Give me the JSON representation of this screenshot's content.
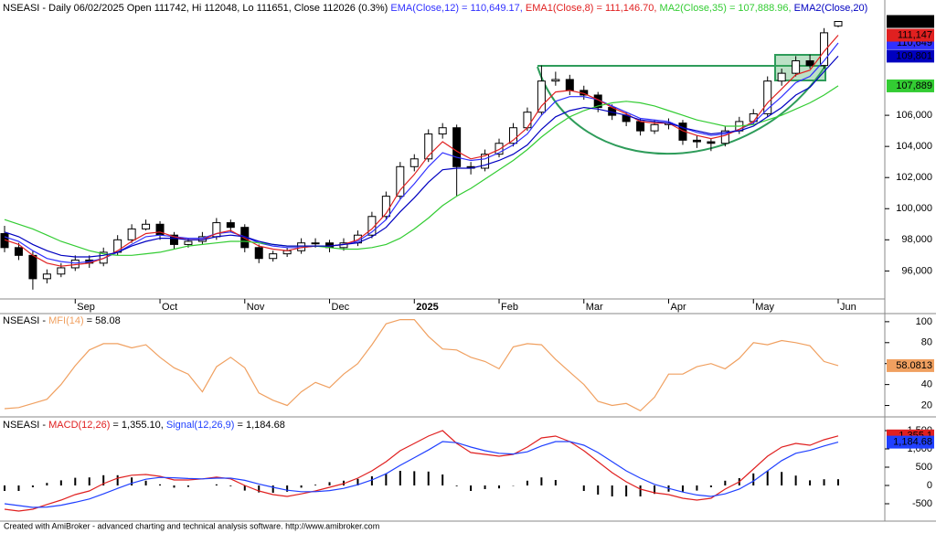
{
  "chart_data": [
    {
      "type": "candlestick",
      "header": "NSEASI - Daily 06/02/2025 Open 111742, Hi 112048, Lo 111651, Close 112026 (0.3%) ",
      "header_values_colored": true,
      "categories": [
        null,
        null,
        null,
        null,
        null,
        "Sep",
        null,
        null,
        null,
        null,
        null,
        "Oct",
        null,
        null,
        null,
        null,
        null,
        "Nov",
        null,
        null,
        null,
        null,
        null,
        "Dec",
        null,
        null,
        null,
        null,
        null,
        "2025",
        null,
        null,
        null,
        null,
        null,
        "Feb",
        null,
        null,
        null,
        null,
        null,
        "Mar",
        null,
        null,
        null,
        null,
        null,
        "Apr",
        null,
        null,
        null,
        null,
        null,
        "May",
        null,
        null,
        null,
        null,
        null,
        "Jun"
      ],
      "open": [
        98400,
        97500,
        97000,
        95500,
        95800,
        96200,
        96700,
        96500,
        97200,
        98000,
        98700,
        99000,
        98300,
        97700,
        97900,
        98200,
        99100,
        98800,
        97500,
        96800,
        97100,
        97300,
        97800,
        97800,
        97500,
        97800,
        98300,
        99500,
        100800,
        102700,
        103200,
        104800,
        105200,
        102700,
        102600,
        103500,
        104200,
        105200,
        106200,
        108200,
        108300,
        107600,
        107300,
        106500,
        106000,
        105600,
        105000,
        105400,
        105500,
        104400,
        104300,
        104200,
        105000,
        105600,
        106100,
        108200,
        108700,
        109500,
        109200,
        111742
      ],
      "high": [
        98900,
        97800,
        97300,
        96100,
        96500,
        97000,
        97000,
        97500,
        98300,
        99000,
        99300,
        99200,
        98500,
        98100,
        98500,
        99400,
        99300,
        99000,
        97700,
        97300,
        97500,
        98100,
        98100,
        98000,
        98100,
        98600,
        99800,
        101100,
        103000,
        103500,
        105100,
        105500,
        105400,
        103000,
        103800,
        104500,
        105500,
        106500,
        109200,
        108800,
        108600,
        107900,
        107500,
        106700,
        106200,
        105800,
        105700,
        105800,
        105700,
        104700,
        104500,
        105300,
        105900,
        106400,
        108500,
        109000,
        109800,
        109900,
        111600,
        112048
      ],
      "low": [
        97200,
        96700,
        94800,
        95200,
        95600,
        96000,
        96200,
        96300,
        97000,
        97800,
        98600,
        98000,
        97400,
        97500,
        97700,
        98000,
        98500,
        97200,
        96500,
        96600,
        96900,
        97100,
        97500,
        97200,
        97300,
        97600,
        98100,
        99300,
        100600,
        102400,
        103000,
        104500,
        100800,
        102200,
        102400,
        103300,
        104000,
        105000,
        106000,
        107900,
        107300,
        107000,
        106200,
        105700,
        105300,
        104700,
        104800,
        105100,
        104100,
        103900,
        103700,
        104000,
        104800,
        105400,
        105900,
        107900,
        108500,
        109000,
        109000,
        111651
      ],
      "close": [
        97500,
        97000,
        95500,
        95800,
        96200,
        96700,
        96500,
        97200,
        98000,
        98700,
        99000,
        98300,
        97700,
        97900,
        98200,
        99100,
        98800,
        97500,
        96800,
        97100,
        97300,
        97800,
        97800,
        97500,
        97800,
        98300,
        99500,
        100800,
        102700,
        103200,
        104800,
        105200,
        102700,
        102600,
        103500,
        104200,
        105200,
        106200,
        108200,
        108300,
        107600,
        107300,
        106500,
        106000,
        105600,
        105000,
        105400,
        105500,
        104400,
        104300,
        104200,
        105000,
        105600,
        106100,
        108200,
        108700,
        109500,
        109200,
        111300,
        112026
      ],
      "color_up": "#ffffff",
      "color_down": "#000000",
      "series": [
        {
          "name": "EMA(Close,12)",
          "header_value": " = 110,649.17, ",
          "color": "#3030ff",
          "values": [
            98200,
            97900,
            97300,
            96800,
            96600,
            96500,
            96600,
            96800,
            97200,
            97700,
            98200,
            98300,
            98200,
            98100,
            98100,
            98400,
            98500,
            98200,
            97800,
            97600,
            97500,
            97500,
            97600,
            97600,
            97700,
            97900,
            98500,
            99300,
            100600,
            101600,
            102700,
            103600,
            103300,
            103100,
            103200,
            103600,
            104100,
            104800,
            106000,
            106900,
            107200,
            107200,
            107000,
            106600,
            106200,
            105800,
            105700,
            105600,
            105200,
            104900,
            104700,
            104800,
            105100,
            105500,
            106400,
            107200,
            108100,
            108500,
            109500,
            110649.17
          ]
        },
        {
          "name": "EMA1(Close,8)",
          "header_value": " = 111,146.70, ",
          "color": "#e02020",
          "values": [
            98000,
            97700,
            97000,
            96500,
            96300,
            96400,
            96500,
            96800,
            97300,
            97900,
            98400,
            98500,
            98200,
            98000,
            98000,
            98400,
            98600,
            98100,
            97600,
            97400,
            97300,
            97500,
            97600,
            97600,
            97700,
            98000,
            98700,
            99700,
            101200,
            102200,
            103400,
            104300,
            103700,
            103200,
            103400,
            103800,
            104400,
            105200,
            106600,
            107500,
            107600,
            107400,
            107000,
            106500,
            106100,
            105600,
            105500,
            105500,
            105000,
            104700,
            104500,
            104700,
            105100,
            105600,
            106800,
            107700,
            108600,
            108900,
            110100,
            111146.7
          ]
        },
        {
          "name": "MA2(Close,35)",
          "header_value": " = 107,888.96, ",
          "color": "#33cc33",
          "values": [
            99300,
            99000,
            98700,
            98300,
            97900,
            97600,
            97300,
            97100,
            97000,
            97000,
            97100,
            97200,
            97400,
            97600,
            97700,
            97800,
            97900,
            97900,
            97800,
            97700,
            97600,
            97600,
            97600,
            97500,
            97400,
            97400,
            97500,
            97700,
            98100,
            98700,
            99400,
            100200,
            100800,
            101300,
            101900,
            102500,
            103100,
            103800,
            104600,
            105300,
            105900,
            106300,
            106600,
            106800,
            106900,
            106800,
            106600,
            106300,
            106000,
            105700,
            105500,
            105300,
            105300,
            105400,
            105700,
            106000,
            106400,
            106800,
            107300,
            107888.96
          ]
        },
        {
          "name": "EMA2(Close,20)",
          "color": "#0000c0",
          "values": [
            98500,
            98200,
            97700,
            97300,
            97000,
            96900,
            96900,
            97000,
            97200,
            97600,
            97900,
            98100,
            98100,
            98000,
            98000,
            98200,
            98300,
            98200,
            97900,
            97700,
            97600,
            97600,
            97600,
            97600,
            97700,
            97800,
            98200,
            98800,
            99800,
            100700,
            101700,
            102500,
            102600,
            102600,
            102800,
            103100,
            103500,
            104100,
            105100,
            105900,
            106300,
            106500,
            106400,
            106200,
            106000,
            105700,
            105600,
            105500,
            105200,
            105000,
            104800,
            104900,
            105000,
            105300,
            105900,
            106500,
            107300,
            107800,
            108800,
            109801
          ]
        }
      ],
      "ylim": [
        94200,
        112350
      ],
      "yticks": [
        {
          "value": 96000,
          "label": "96,000"
        },
        {
          "value": 98000,
          "label": "98,000"
        },
        {
          "value": 100000,
          "label": "100,000"
        },
        {
          "value": 102000,
          "label": "102,000"
        },
        {
          "value": 104000,
          "label": "104,000"
        },
        {
          "value": 106000,
          "label": "106,000"
        }
      ],
      "badges": [
        {
          "value": 107889,
          "label": "107,889",
          "color": "#33cc33",
          "text_color": "#000000"
        },
        {
          "value": 109801,
          "label": "109,801",
          "color": "#0000c0",
          "text_color": "#ffffff"
        },
        {
          "value": 110649,
          "label": "110,649",
          "color": "#3030ff",
          "text_color": "#ffffff"
        },
        {
          "value": 111147,
          "label": "111,147",
          "color": "#e02020",
          "text_color": "#ffffff"
        },
        {
          "value": 112026,
          "label": "112,026",
          "color": "#000000",
          "text_color": "#ffffff"
        }
      ]
    },
    {
      "type": "line",
      "header": "NSEASI - ",
      "header_values_colored": false,
      "series": [
        {
          "name": "MFI(14)",
          "header_value": " = 58.08",
          "color": "#f0a060",
          "values": [
            17,
            18,
            22,
            26,
            40,
            58,
            73,
            79,
            79,
            75,
            78,
            66,
            56,
            50,
            33,
            57,
            66,
            56,
            32,
            25,
            20,
            33,
            42,
            37,
            50,
            60,
            78,
            98,
            102,
            102,
            86,
            74,
            73,
            66,
            62,
            55,
            76,
            79,
            78,
            64,
            52,
            40,
            24,
            20,
            22,
            15,
            28,
            50,
            50,
            57,
            60,
            55,
            65,
            80,
            78,
            82,
            80,
            77,
            62,
            58.0813
          ]
        }
      ],
      "ylim": [
        10,
        106
      ],
      "yticks": [
        20,
        40,
        60,
        80,
        100
      ],
      "badges": [
        {
          "value": 58.0813,
          "label": "58.0813",
          "color": "#f0a060",
          "text_color": "#000000"
        }
      ]
    },
    {
      "type": "line",
      "header": "NSEASI - ",
      "header_values_colored": false,
      "series": [
        {
          "type": "bar",
          "color": "#000000",
          "values": [
            -150,
            -150,
            -50,
            70,
            140,
            210,
            220,
            280,
            280,
            220,
            130,
            30,
            -60,
            -40,
            0,
            30,
            -20,
            -140,
            -190,
            -200,
            -170,
            -60,
            20,
            90,
            130,
            180,
            250,
            330,
            400,
            390,
            380,
            300,
            -20,
            -150,
            -100,
            -80,
            -10,
            130,
            220,
            150,
            0,
            -150,
            -250,
            -300,
            -300,
            -300,
            -230,
            -170,
            -170,
            -140,
            -50,
            130,
            200,
            330,
            400,
            370,
            270,
            140,
            170,
            170.42
          ]
        },
        {
          "name": "MACD(12,26)",
          "header_value": " = 1,355.10, ",
          "color": "#e02020",
          "values": [
            -650,
            -700,
            -650,
            -520,
            -400,
            -250,
            -150,
            50,
            200,
            280,
            300,
            250,
            150,
            150,
            180,
            230,
            180,
            0,
            -150,
            -250,
            -300,
            -230,
            -150,
            -50,
            50,
            200,
            400,
            650,
            950,
            1150,
            1350,
            1500,
            1150,
            900,
            850,
            800,
            850,
            1050,
            1300,
            1350,
            1200,
            950,
            650,
            350,
            100,
            -100,
            -200,
            -250,
            -350,
            -400,
            -350,
            -100,
            100,
            450,
            800,
            1050,
            1150,
            1100,
            1250,
            1355.1
          ]
        },
        {
          "name": "Signal(12,26,9)",
          "header_value": " = 1,184.68",
          "color": "#2040ff",
          "values": [
            -500,
            -550,
            -600,
            -590,
            -540,
            -460,
            -370,
            -230,
            -80,
            60,
            170,
            220,
            210,
            190,
            180,
            200,
            200,
            140,
            40,
            -50,
            -130,
            -170,
            -170,
            -140,
            -80,
            20,
            150,
            320,
            550,
            760,
            970,
            1200,
            1170,
            1050,
            950,
            880,
            860,
            920,
            1080,
            1200,
            1200,
            1100,
            900,
            650,
            400,
            200,
            30,
            -80,
            -180,
            -260,
            -300,
            -230,
            -100,
            120,
            400,
            680,
            880,
            960,
            1080,
            1184.68
          ]
        }
      ],
      "ylim": [
        -925,
        1775
      ],
      "yticks": [
        -500,
        0,
        500,
        {
          "value": 1000,
          "label": "1,000"
        },
        {
          "value": 1500,
          "label": "1,500"
        }
      ],
      "badges": [
        {
          "value": 1355.1,
          "label": "1,355.1",
          "color": "#e02020",
          "text_color": "#ffffff"
        },
        {
          "value": 1184.68,
          "label": "1,184.68",
          "color": "#2040ff",
          "text_color": "#ffffff"
        }
      ]
    }
  ],
  "footer": "Created with AmiBroker - advanced charting and technical analysis software. http://www.amibroker.com"
}
